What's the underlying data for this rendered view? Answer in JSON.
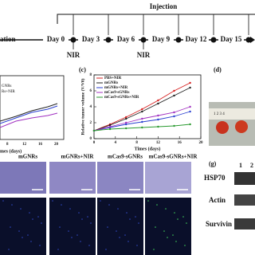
{
  "timeline": {
    "injection": "Injection",
    "start": "ation",
    "days": [
      "Day 0",
      "Day 3",
      "Day 6",
      "Day 9",
      "Day 12",
      "Day 15"
    ],
    "nir": [
      "NIR",
      "NIR"
    ]
  },
  "panel_b": {
    "legend": [
      "GNRs",
      "Rs+NIR"
    ],
    "xlabel": "mes (days)",
    "xticks": [
      "8",
      "12",
      "16",
      "20"
    ]
  },
  "chart_data": {
    "type": "line",
    "panel": "(c)",
    "xlabel": "Times (days)",
    "ylabel": "Relative tumor volume (V/V0)",
    "x": [
      0,
      3,
      6,
      9,
      12,
      15,
      18
    ],
    "xlim": [
      0,
      20
    ],
    "xticks": [
      0,
      4,
      8,
      12,
      16,
      20
    ],
    "ylim": [
      0,
      8
    ],
    "yticks": [
      0,
      2,
      4,
      6,
      8
    ],
    "series": [
      {
        "name": "PBS+NIR",
        "color": "#d62020",
        "values": [
          1,
          1.8,
          2.7,
          3.7,
          4.8,
          6,
          7
        ]
      },
      {
        "name": "mGNRs",
        "color": "#222222",
        "values": [
          1,
          1.7,
          2.5,
          3.4,
          4.4,
          5.4,
          6.4
        ]
      },
      {
        "name": "mGNRs+NIR",
        "color": "#2a3fd0",
        "values": [
          1,
          1.4,
          1.8,
          2.1,
          2.4,
          2.8,
          3.4
        ]
      },
      {
        "name": "mCas9-sGNRs",
        "color": "#a030c0",
        "values": [
          1,
          1.5,
          2,
          2.5,
          2.9,
          3.3,
          4
        ]
      },
      {
        "name": "mCas9-sGNRs+NIR",
        "color": "#2a9a30",
        "values": [
          1,
          1.2,
          1.3,
          1.4,
          1.5,
          1.6,
          1.8
        ]
      }
    ]
  },
  "panel_d": {
    "label": "(d)",
    "ruler": "1 2 3 4"
  },
  "histology": {
    "labels": [
      "mGNRs",
      "mGNRs+NIR",
      "mCas9-sGNRs",
      "mCas9-sGNRs+NIR"
    ]
  },
  "panel_g": {
    "label": "(g)",
    "lanes": [
      "1",
      "2"
    ],
    "proteins": [
      "HSP70",
      "Actin",
      "Survivin"
    ]
  }
}
